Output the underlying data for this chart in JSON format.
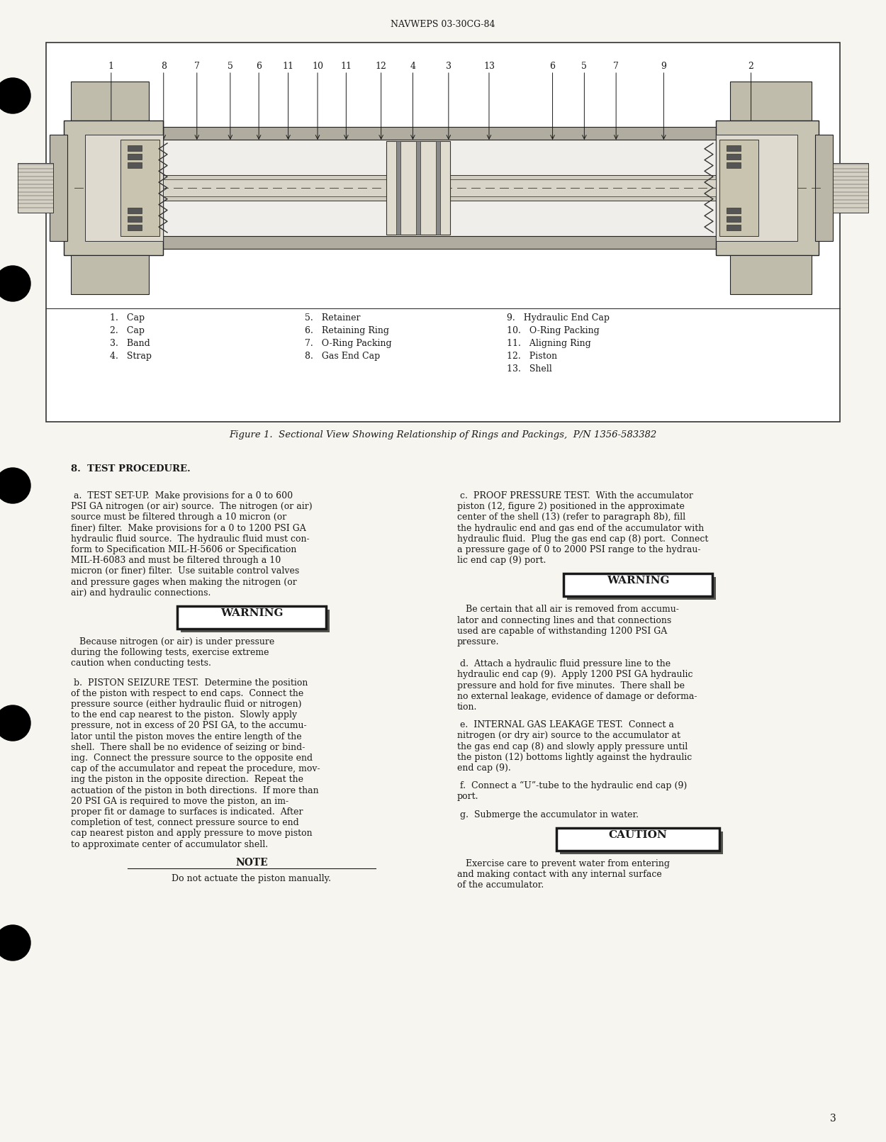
{
  "header": "NAVWEPS 03-30CG-84",
  "page_number": "3",
  "bg_color": "#f7f5f0",
  "text_color": "#1a1a1a",
  "fig_bg": "#ffffff",
  "figure_caption": "Figure 1.  Sectional View Showing Relationship of Rings and Packings,  P/N 1356-583382",
  "callout_numbers": [
    [
      "1",
      0.082
    ],
    [
      "8",
      0.148
    ],
    [
      "7",
      0.19
    ],
    [
      "5",
      0.232
    ],
    [
      "6",
      0.268
    ],
    [
      "11",
      0.305
    ],
    [
      "10",
      0.342
    ],
    [
      "11",
      0.378
    ],
    [
      "12",
      0.422
    ],
    [
      "4",
      0.462
    ],
    [
      "3",
      0.507
    ],
    [
      "13",
      0.558
    ],
    [
      "6",
      0.638
    ],
    [
      "5",
      0.678
    ],
    [
      "7",
      0.718
    ],
    [
      "9",
      0.778
    ],
    [
      "2",
      0.888
    ]
  ],
  "parts_list": [
    [
      "1.   Cap",
      "5.   Retainer",
      "9.   Hydraulic End Cap"
    ],
    [
      "2.   Cap",
      "6.   Retaining Ring",
      "10.   O-Ring Packing"
    ],
    [
      "3.   Band",
      "7.   O-Ring Packing",
      "11.   Aligning Ring"
    ],
    [
      "4.   Strap",
      "8.   Gas End Cap",
      "12.   Piston"
    ],
    [
      "",
      "",
      "13.   Shell"
    ]
  ],
  "section_header": "8.  TEST PROCEDURE.",
  "left_lines_a": [
    " a.  TEST SET-UP.  Make provisions for a 0 to 600",
    "PSI GA nitrogen (or air) source.  The nitrogen (or air)",
    "source must be filtered through a 10 micron (or",
    "finer) filter.  Make provisions for a 0 to 1200 PSI GA",
    "hydraulic fluid source.  The hydraulic fluid must con-",
    "form to Specification MIL-H-5606 or Specification",
    "MIL-H-6083 and must be filtered through a 10",
    "micron (or finer) filter.  Use suitable control valves",
    "and pressure gages when making the nitrogen (or",
    "air) and hydraulic connections."
  ],
  "warn_left_lines": [
    "   Because nitrogen (or air) is under pressure",
    "during the following tests, exercise extreme",
    "caution when conducting tests."
  ],
  "left_lines_b": [
    " b.  PISTON SEIZURE TEST.  Determine the position",
    "of the piston with respect to end caps.  Connect the",
    "pressure source (either hydraulic fluid or nitrogen)",
    "to the end cap nearest to the piston.  Slowly apply",
    "pressure, not in excess of 20 PSI GA, to the accumu-",
    "lator until the piston moves the entire length of the",
    "shell.  There shall be no evidence of seizing or bind-",
    "ing.  Connect the pressure source to the opposite end",
    "cap of the accumulator and repeat the procedure, mov-",
    "ing the piston in the opposite direction.  Repeat the",
    "actuation of the piston in both directions.  If more than",
    "20 PSI GA is required to move the piston, an im-",
    "proper fit or damage to surfaces is indicated.  After",
    "completion of test, connect pressure source to end",
    "cap nearest piston and apply pressure to move piston",
    "to approximate center of accumulator shell."
  ],
  "note_line": "Do not actuate the piston manually.",
  "right_lines_c": [
    " c.  PROOF PRESSURE TEST.  With the accumulator",
    "piston (12, figure 2) positioned in the approximate",
    "center of the shell (13) (refer to paragraph 8b), fill",
    "the hydraulic end and gas end of the accumulator with",
    "hydraulic fluid.  Plug the gas end cap (8) port.  Connect",
    "a pressure gage of 0 to 2000 PSI range to the hydrau-",
    "lic end cap (9) port."
  ],
  "warn_right_lines": [
    "   Be certain that all air is removed from accumu-",
    "lator and connecting lines and that connections",
    "used are capable of withstanding 1200 PSI GA",
    "pressure."
  ],
  "right_lines_d": [
    " d.  Attach a hydraulic fluid pressure line to the",
    "hydraulic end cap (9).  Apply 1200 PSI GA hydraulic",
    "pressure and hold for five minutes.  There shall be",
    "no external leakage, evidence of damage or deforma-",
    "tion."
  ],
  "right_lines_e": [
    " e.  INTERNAL GAS LEAKAGE TEST.  Connect a",
    "nitrogen (or dry air) source to the accumulator at",
    "the gas end cap (8) and slowly apply pressure until",
    "the piston (12) bottoms lightly against the hydraulic",
    "end cap (9)."
  ],
  "right_lines_f": [
    " f.  Connect a “U”-tube to the hydraulic end cap (9)",
    "port."
  ],
  "right_line_g": " g.  Submerge the accumulator in water.",
  "caution_lines": [
    "   Exercise care to prevent water from entering",
    "and making contact with any internal surface",
    "of the accumulator."
  ]
}
